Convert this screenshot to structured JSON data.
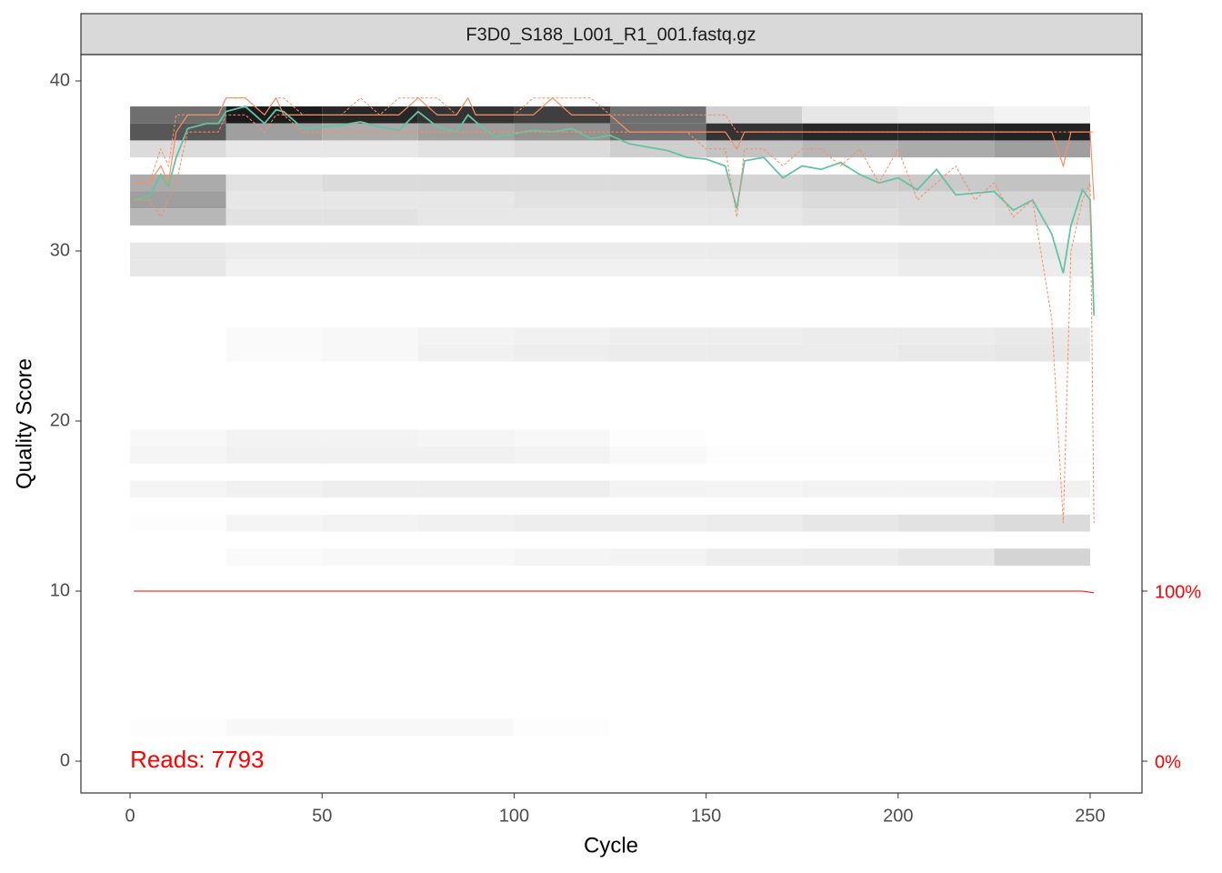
{
  "chart_data": {
    "type": "line",
    "strip_title": "F3D0_S188_L001_R1_001.fastq.gz",
    "xlabel": "Cycle",
    "ylabel": "Quality Score",
    "annotation": "Reads:  7793",
    "annotation_color": "#ff0000",
    "xlim": [
      -12.8,
      263.5
    ],
    "xticks": [
      0,
      50,
      100,
      150,
      200,
      250
    ],
    "ylim": [
      -1.87,
      41.55
    ],
    "yticks": [
      0,
      10,
      20,
      30,
      40
    ],
    "y2lim": [
      -18.7,
      415.5
    ],
    "y2ticks": [
      {
        "value": 0,
        "label": "0%"
      },
      {
        "value": 100,
        "label": "100%"
      }
    ],
    "y2_color": "#ff0000",
    "heatmap": {
      "bins": [
        0,
        25,
        50,
        75,
        100,
        125,
        150,
        175,
        200,
        225,
        250
      ],
      "quality": [
        38,
        37,
        36,
        34,
        33,
        32,
        30,
        29,
        25,
        24,
        19,
        18,
        16,
        14,
        12,
        2
      ],
      "density": [
        [
          60,
          95,
          90,
          85,
          80,
          60,
          20,
          10,
          8,
          5
        ],
        [
          70,
          40,
          35,
          40,
          45,
          60,
          85,
          90,
          90,
          92
        ],
        [
          15,
          10,
          10,
          12,
          15,
          20,
          25,
          30,
          35,
          40
        ],
        [
          35,
          12,
          15,
          15,
          15,
          15,
          18,
          20,
          22,
          25
        ],
        [
          40,
          10,
          10,
          10,
          12,
          12,
          12,
          15,
          15,
          18
        ],
        [
          30,
          12,
          12,
          10,
          10,
          10,
          10,
          12,
          14,
          16
        ],
        [
          10,
          8,
          8,
          8,
          8,
          8,
          8,
          8,
          10,
          10
        ],
        [
          10,
          6,
          6,
          6,
          6,
          6,
          6,
          6,
          8,
          8
        ],
        [
          0,
          2,
          3,
          5,
          6,
          7,
          7,
          8,
          8,
          9
        ],
        [
          0,
          2,
          3,
          6,
          7,
          8,
          8,
          8,
          9,
          10
        ],
        [
          3,
          5,
          5,
          4,
          3,
          1,
          0,
          0,
          0,
          0
        ],
        [
          4,
          6,
          6,
          6,
          5,
          3,
          1,
          1,
          1,
          1
        ],
        [
          4,
          6,
          7,
          7,
          7,
          5,
          4,
          5,
          5,
          6
        ],
        [
          1,
          4,
          5,
          6,
          7,
          7,
          8,
          10,
          12,
          15
        ],
        [
          0,
          2,
          3,
          3,
          4,
          5,
          7,
          8,
          10,
          18
        ],
        [
          1,
          3,
          3,
          3,
          1,
          0,
          0,
          0,
          0,
          0
        ]
      ]
    },
    "x": [
      1,
      5,
      8,
      10,
      12,
      15,
      20,
      23,
      25,
      30,
      35,
      38,
      40,
      45,
      50,
      55,
      60,
      65,
      70,
      75,
      80,
      85,
      88,
      90,
      95,
      100,
      105,
      110,
      115,
      120,
      125,
      130,
      135,
      140,
      145,
      150,
      155,
      158,
      160,
      165,
      170,
      175,
      180,
      185,
      190,
      195,
      200,
      205,
      210,
      215,
      220,
      225,
      230,
      235,
      240,
      243,
      245,
      248,
      250,
      251
    ],
    "series": [
      {
        "color": "#66c2a5",
        "width": 1.8,
        "dash": false,
        "values": [
          33,
          33.2,
          34.5,
          33.8,
          35.5,
          37.2,
          37.5,
          37.5,
          38.2,
          38.5,
          37.5,
          38.3,
          38.2,
          37.2,
          37.3,
          37.4,
          37.6,
          37.3,
          37.1,
          38.2,
          37.3,
          37.0,
          38.0,
          37.6,
          36.7,
          36.9,
          37.1,
          37.0,
          37.2,
          36.6,
          36.8,
          36.3,
          36.1,
          35.9,
          35.5,
          35.4,
          35.0,
          32.5,
          35.3,
          35.5,
          34.3,
          35.0,
          34.8,
          35.2,
          34.5,
          34.0,
          34.3,
          33.6,
          34.8,
          33.3,
          33.4,
          33.5,
          32.4,
          33.0,
          31.0,
          28.7,
          31.5,
          33.6,
          33.0,
          26.2
        ]
      },
      {
        "color": "#fc8d62",
        "width": 1.2,
        "dash": false,
        "values": [
          34,
          34,
          35,
          34,
          37,
          38,
          38,
          38,
          39,
          39,
          38,
          39,
          38,
          38,
          38,
          38,
          38,
          38,
          38,
          39,
          38,
          38,
          39,
          38,
          38,
          38,
          38,
          39,
          38,
          38,
          38,
          37,
          37,
          37,
          37,
          37,
          37,
          36,
          37,
          37,
          37,
          37,
          37,
          37,
          37,
          37,
          37,
          37,
          37,
          37,
          37,
          37,
          37,
          37,
          37,
          35,
          37,
          37,
          37,
          33
        ]
      },
      {
        "color": "#fc8d62",
        "width": 1,
        "dash": true,
        "values": [
          33,
          33,
          32,
          33,
          34,
          37,
          37,
          37,
          38,
          38,
          37,
          38,
          38,
          37,
          37,
          37,
          37,
          37,
          37,
          37,
          37,
          37,
          37,
          37,
          37,
          37,
          37,
          37,
          37,
          37,
          37,
          37,
          37,
          37,
          37,
          36,
          36,
          32,
          36,
          36,
          35,
          36,
          36,
          35,
          36,
          34,
          36,
          33,
          34,
          35,
          33,
          34,
          32,
          33,
          26,
          14,
          30,
          33,
          34,
          14
        ]
      },
      {
        "color": "#fc8d62",
        "width": 1,
        "dash": true,
        "values": [
          34,
          34,
          36,
          35,
          38,
          38,
          38,
          38,
          39,
          39,
          38,
          39,
          39,
          38,
          38,
          38,
          39,
          38,
          39,
          39,
          39,
          38,
          39,
          38,
          38,
          38,
          39,
          39,
          39,
          39,
          38,
          38,
          38,
          38,
          38,
          38,
          38,
          37,
          37,
          37,
          37,
          37,
          37,
          37,
          37,
          37,
          37,
          37,
          37,
          37,
          37,
          37,
          37,
          37,
          37,
          37,
          37,
          37,
          37,
          37
        ]
      }
    ],
    "reads": {
      "x": [
        1,
        248,
        251
      ],
      "values": [
        100,
        100,
        99
      ],
      "color": "#ff0000"
    }
  }
}
